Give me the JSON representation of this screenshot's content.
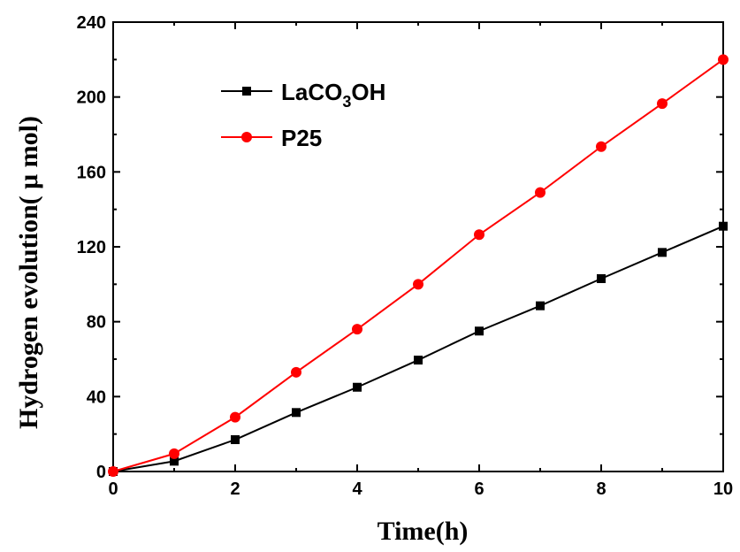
{
  "chart_data": {
    "type": "line",
    "xlabel": "Time(h)",
    "ylabel": "Hydrogen evolution( μ mol)",
    "xlim": [
      0,
      10
    ],
    "ylim": [
      0,
      240
    ],
    "xticks": [
      0,
      2,
      4,
      6,
      8,
      10
    ],
    "yticks": [
      0,
      40,
      80,
      120,
      160,
      200,
      240
    ],
    "x": [
      0,
      1,
      2,
      3,
      4,
      5,
      6,
      7,
      8,
      9,
      10
    ],
    "grid": false,
    "legend_position": "top-left",
    "series": [
      {
        "name": "LaCO3OH",
        "name_parts": {
          "main": "LaCO",
          "sub": "3",
          "tail": "OH"
        },
        "color": "#000000",
        "marker": "square",
        "values": [
          0,
          5.5,
          17,
          31.5,
          45,
          59.5,
          75,
          88.5,
          103,
          117,
          131
        ]
      },
      {
        "name": "P25",
        "color": "#ff0000",
        "marker": "circle",
        "values": [
          0,
          9.5,
          29,
          53,
          76,
          100,
          126.5,
          149,
          173.5,
          196.5,
          220
        ]
      }
    ]
  }
}
